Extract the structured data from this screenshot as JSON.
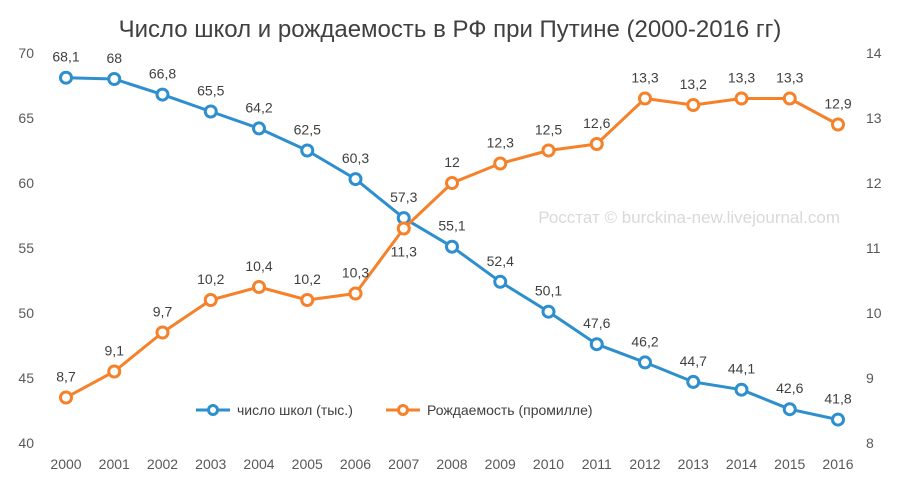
{
  "chart_data": {
    "type": "line",
    "title": "Число школ и рождаемость в РФ при Путине (2000-2016 гг)",
    "watermark": "Росстат © burckina-new.livejournal.com",
    "categories": [
      "2000",
      "2001",
      "2002",
      "2003",
      "2004",
      "2005",
      "2006",
      "2007",
      "2008",
      "2009",
      "2010",
      "2011",
      "2012",
      "2013",
      "2014",
      "2015",
      "2016"
    ],
    "series": [
      {
        "name": "число школ (тыс.)",
        "axis": "left",
        "color": "#2e8fcf",
        "values": [
          68.1,
          68,
          66.8,
          65.5,
          64.2,
          62.5,
          60.3,
          57.3,
          55.1,
          52.4,
          50.1,
          47.6,
          46.2,
          44.7,
          44.1,
          42.6,
          41.8
        ],
        "labels": [
          "68,1",
          "68",
          "66,8",
          "65,5",
          "64,2",
          "62,5",
          "60,3",
          "57,3",
          "55,1",
          "52,4",
          "50,1",
          "47,6",
          "46,2",
          "44,7",
          "44,1",
          "42,6",
          "41,8"
        ]
      },
      {
        "name": "Рождаемость (промилле)",
        "axis": "right",
        "color": "#f5822a",
        "values": [
          8.7,
          9.1,
          9.7,
          10.2,
          10.4,
          10.2,
          10.3,
          11.3,
          12,
          12.3,
          12.5,
          12.6,
          13.3,
          13.2,
          13.3,
          13.3,
          12.9
        ],
        "labels": [
          "8,7",
          "9,1",
          "9,7",
          "10,2",
          "10,4",
          "10,2",
          "10,3",
          "11,3",
          "12",
          "12,3",
          "12,5",
          "12,6",
          "13,3",
          "13,2",
          "13,3",
          "13,3",
          "12,9"
        ]
      }
    ],
    "y_left": {
      "min": 40,
      "max": 70,
      "ticks": [
        "40",
        "45",
        "50",
        "55",
        "60",
        "65",
        "70"
      ]
    },
    "y_right": {
      "min": 8,
      "max": 14,
      "ticks": [
        "8",
        "9",
        "10",
        "11",
        "12",
        "13",
        "14"
      ]
    },
    "grid": false,
    "legend": "bottom-center"
  }
}
